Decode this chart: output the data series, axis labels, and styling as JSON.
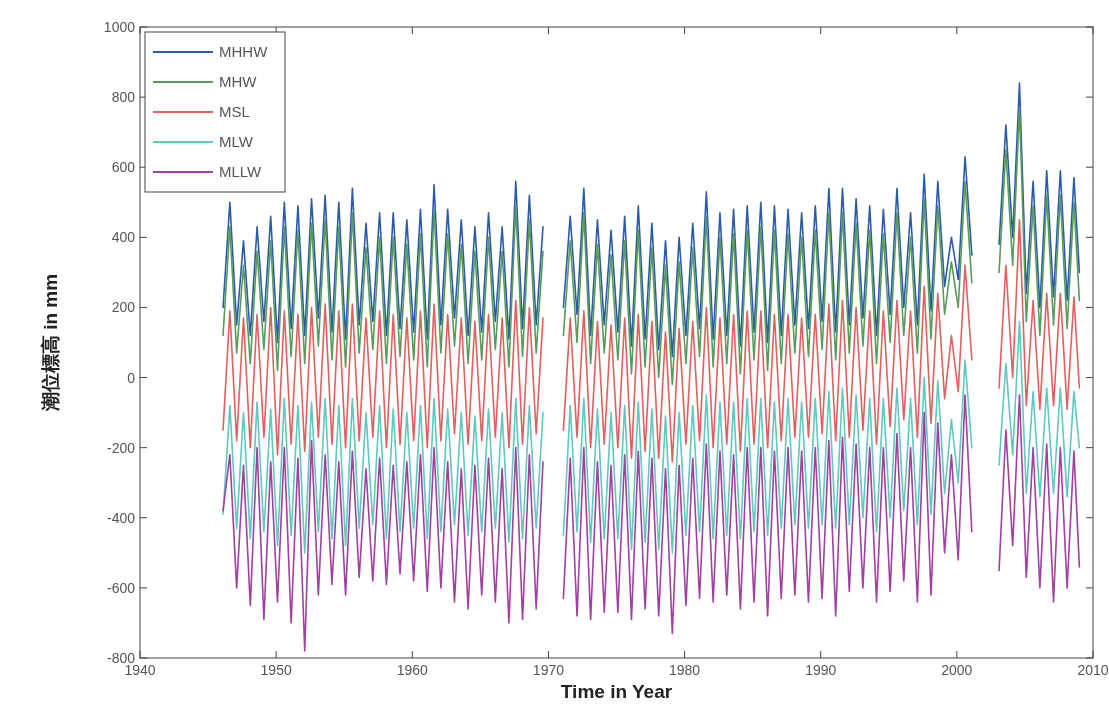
{
  "chart_data": {
    "type": "line",
    "xlabel": "Time in Year",
    "ylabel": "潮位標高 in mm",
    "xlim": [
      1940,
      2010
    ],
    "xticks": [
      1940,
      1950,
      1960,
      1970,
      1980,
      1990,
      2000,
      2010
    ],
    "ylim": [
      -800,
      1000
    ],
    "yticks": [
      -800,
      -600,
      -400,
      -200,
      0,
      200,
      400,
      600,
      800,
      1000
    ],
    "legend": "top left",
    "x": [
      1946.1,
      1946.6,
      1947.1,
      1947.6,
      1948.1,
      1948.6,
      1949.1,
      1949.6,
      1950.1,
      1950.6,
      1951.1,
      1951.6,
      1952.1,
      1952.6,
      1953.1,
      1953.6,
      1954.1,
      1954.6,
      1955.1,
      1955.6,
      1956.1,
      1956.6,
      1957.1,
      1957.6,
      1958.1,
      1958.6,
      1959.1,
      1959.6,
      1960.1,
      1960.6,
      1961.1,
      1961.6,
      1962.1,
      1962.6,
      1963.1,
      1963.6,
      1964.1,
      1964.6,
      1965.1,
      1965.6,
      1966.1,
      1966.6,
      1967.1,
      1967.6,
      1968.1,
      1968.6,
      1969.1,
      1969.6,
      1970.3,
      1971.1,
      1971.6,
      1972.1,
      1972.6,
      1973.1,
      1973.6,
      1974.1,
      1974.6,
      1975.1,
      1975.6,
      1976.1,
      1976.6,
      1977.1,
      1977.6,
      1978.1,
      1978.6,
      1979.1,
      1979.6,
      1980.1,
      1980.6,
      1981.1,
      1981.6,
      1982.1,
      1982.6,
      1983.1,
      1983.6,
      1984.1,
      1984.6,
      1985.1,
      1985.6,
      1986.1,
      1986.6,
      1987.1,
      1987.6,
      1988.1,
      1988.6,
      1989.1,
      1989.6,
      1990.1,
      1990.6,
      1991.1,
      1991.6,
      1992.1,
      1992.6,
      1993.1,
      1993.6,
      1994.1,
      1994.6,
      1995.1,
      1995.6,
      1996.1,
      1996.6,
      1997.1,
      1997.6,
      1998.1,
      1998.6,
      1999.1,
      1999.6,
      2000.1,
      2000.6,
      2001.1,
      2002.0,
      2003.1,
      2003.6,
      2004.1,
      2004.6,
      2005.1,
      2005.6,
      2006.1,
      2006.6,
      2007.1,
      2007.6,
      2008.1,
      2008.6,
      2009.0
    ],
    "series": [
      {
        "name": "MHHW",
        "color": "#2a5caa",
        "values": [
          200,
          500,
          150,
          390,
          120,
          430,
          160,
          460,
          100,
          500,
          140,
          490,
          120,
          510,
          170,
          520,
          130,
          500,
          110,
          540,
          150,
          440,
          160,
          470,
          120,
          470,
          140,
          450,
          130,
          480,
          110,
          550,
          150,
          480,
          170,
          450,
          120,
          430,
          130,
          470,
          160,
          430,
          110,
          560,
          140,
          520,
          150,
          430,
          null,
          200,
          460,
          180,
          540,
          120,
          450,
          150,
          420,
          130,
          460,
          90,
          490,
          110,
          440,
          80,
          390,
          60,
          400,
          120,
          440,
          140,
          530,
          110,
          470,
          120,
          480,
          90,
          490,
          130,
          500,
          100,
          490,
          120,
          480,
          150,
          470,
          140,
          490,
          160,
          540,
          130,
          540,
          150,
          510,
          170,
          490,
          120,
          480,
          180,
          540,
          200,
          470,
          150,
          580,
          190,
          560,
          260,
          400,
          280,
          630,
          350,
          null,
          380,
          720,
          400,
          840,
          240,
          560,
          200,
          590,
          230,
          590,
          220,
          570,
          300
        ]
      },
      {
        "name": "MHW",
        "color": "#5a9a5a",
        "values": [
          120,
          430,
          70,
          320,
          40,
          360,
          80,
          390,
          20,
          430,
          60,
          420,
          40,
          440,
          90,
          450,
          50,
          430,
          30,
          470,
          70,
          370,
          80,
          400,
          40,
          400,
          60,
          380,
          50,
          410,
          30,
          480,
          70,
          410,
          90,
          380,
          40,
          360,
          50,
          400,
          80,
          360,
          30,
          490,
          60,
          450,
          70,
          360,
          null,
          120,
          390,
          100,
          470,
          40,
          380,
          70,
          350,
          50,
          390,
          10,
          420,
          30,
          370,
          0,
          320,
          -20,
          330,
          40,
          370,
          60,
          460,
          30,
          400,
          40,
          410,
          10,
          420,
          50,
          430,
          20,
          420,
          40,
          410,
          70,
          400,
          60,
          420,
          80,
          470,
          50,
          470,
          70,
          440,
          90,
          420,
          40,
          410,
          100,
          470,
          120,
          400,
          70,
          510,
          110,
          490,
          180,
          330,
          200,
          560,
          270,
          null,
          300,
          650,
          320,
          770,
          160,
          490,
          120,
          520,
          150,
          520,
          140,
          500,
          220
        ]
      },
      {
        "name": "MSL",
        "color": "#e06060",
        "values": [
          -150,
          190,
          -180,
          170,
          -200,
          180,
          -170,
          200,
          -220,
          190,
          -190,
          180,
          -210,
          200,
          -170,
          210,
          -190,
          190,
          -200,
          210,
          -180,
          170,
          -170,
          190,
          -200,
          180,
          -190,
          170,
          -180,
          190,
          -200,
          210,
          -180,
          180,
          -160,
          170,
          -190,
          160,
          -180,
          180,
          -170,
          170,
          -200,
          220,
          -190,
          200,
          -160,
          170,
          null,
          -150,
          170,
          -170,
          190,
          -200,
          160,
          -190,
          150,
          -200,
          170,
          -230,
          180,
          -210,
          160,
          -230,
          130,
          -240,
          140,
          -190,
          160,
          -180,
          200,
          -200,
          170,
          -190,
          180,
          -210,
          190,
          -190,
          190,
          -200,
          180,
          -180,
          180,
          -170,
          170,
          -170,
          180,
          -160,
          210,
          -180,
          220,
          -170,
          200,
          -150,
          190,
          -190,
          190,
          -140,
          220,
          -120,
          190,
          -170,
          260,
          -130,
          240,
          -60,
          120,
          -40,
          320,
          50,
          null,
          -30,
          320,
          0,
          450,
          -80,
          220,
          -90,
          240,
          -80,
          240,
          -90,
          230,
          -30
        ]
      },
      {
        "name": "MLW",
        "color": "#5fc8c0",
        "values": [
          -390,
          -80,
          -430,
          -100,
          -460,
          -70,
          -440,
          -90,
          -480,
          -60,
          -450,
          -80,
          -500,
          -70,
          -440,
          -60,
          -460,
          -80,
          -480,
          -60,
          -430,
          -100,
          -420,
          -80,
          -460,
          -90,
          -440,
          -100,
          -430,
          -80,
          -460,
          -60,
          -440,
          -90,
          -420,
          -100,
          -450,
          -110,
          -440,
          -90,
          -430,
          -100,
          -470,
          -60,
          -460,
          -80,
          -430,
          -100,
          null,
          -450,
          -80,
          -440,
          -60,
          -470,
          -90,
          -460,
          -100,
          -460,
          -80,
          -490,
          -70,
          -470,
          -90,
          -490,
          -110,
          -500,
          -100,
          -450,
          -80,
          -440,
          -50,
          -460,
          -70,
          -450,
          -70,
          -460,
          -60,
          -440,
          -60,
          -450,
          -70,
          -430,
          -60,
          -420,
          -70,
          -430,
          -60,
          -420,
          -40,
          -430,
          -30,
          -420,
          -50,
          -400,
          -60,
          -440,
          -60,
          -400,
          -30,
          -380,
          -60,
          -420,
          0,
          -390,
          -10,
          -330,
          -120,
          -300,
          50,
          -200,
          null,
          -250,
          40,
          -220,
          160,
          -330,
          -40,
          -340,
          -30,
          -330,
          -30,
          -340,
          -40,
          -200
        ]
      },
      {
        "name": "MLLW",
        "color": "#a040a0",
        "values": [
          -380,
          -220,
          -600,
          -250,
          -650,
          -200,
          -690,
          -240,
          -640,
          -200,
          -700,
          -230,
          -780,
          -180,
          -620,
          -220,
          -590,
          -240,
          -620,
          -210,
          -570,
          -260,
          -580,
          -230,
          -590,
          -250,
          -560,
          -240,
          -580,
          -220,
          -610,
          -200,
          -600,
          -240,
          -640,
          -260,
          -660,
          -250,
          -620,
          -230,
          -640,
          -260,
          -700,
          -200,
          -690,
          -220,
          -660,
          -240,
          null,
          -630,
          -230,
          -680,
          -200,
          -690,
          -240,
          -670,
          -250,
          -670,
          -220,
          -690,
          -210,
          -660,
          -230,
          -680,
          -260,
          -730,
          -250,
          -650,
          -230,
          -630,
          -190,
          -640,
          -210,
          -620,
          -220,
          -660,
          -200,
          -640,
          -200,
          -680,
          -210,
          -630,
          -200,
          -620,
          -210,
          -640,
          -200,
          -630,
          -180,
          -680,
          -170,
          -610,
          -190,
          -600,
          -200,
          -640,
          -200,
          -610,
          -160,
          -580,
          -200,
          -640,
          -100,
          -620,
          -130,
          -500,
          -220,
          -520,
          -50,
          -440,
          null,
          -550,
          -150,
          -480,
          -50,
          -570,
          -200,
          -600,
          -190,
          -640,
          -200,
          -600,
          -210,
          -540
        ]
      }
    ]
  }
}
